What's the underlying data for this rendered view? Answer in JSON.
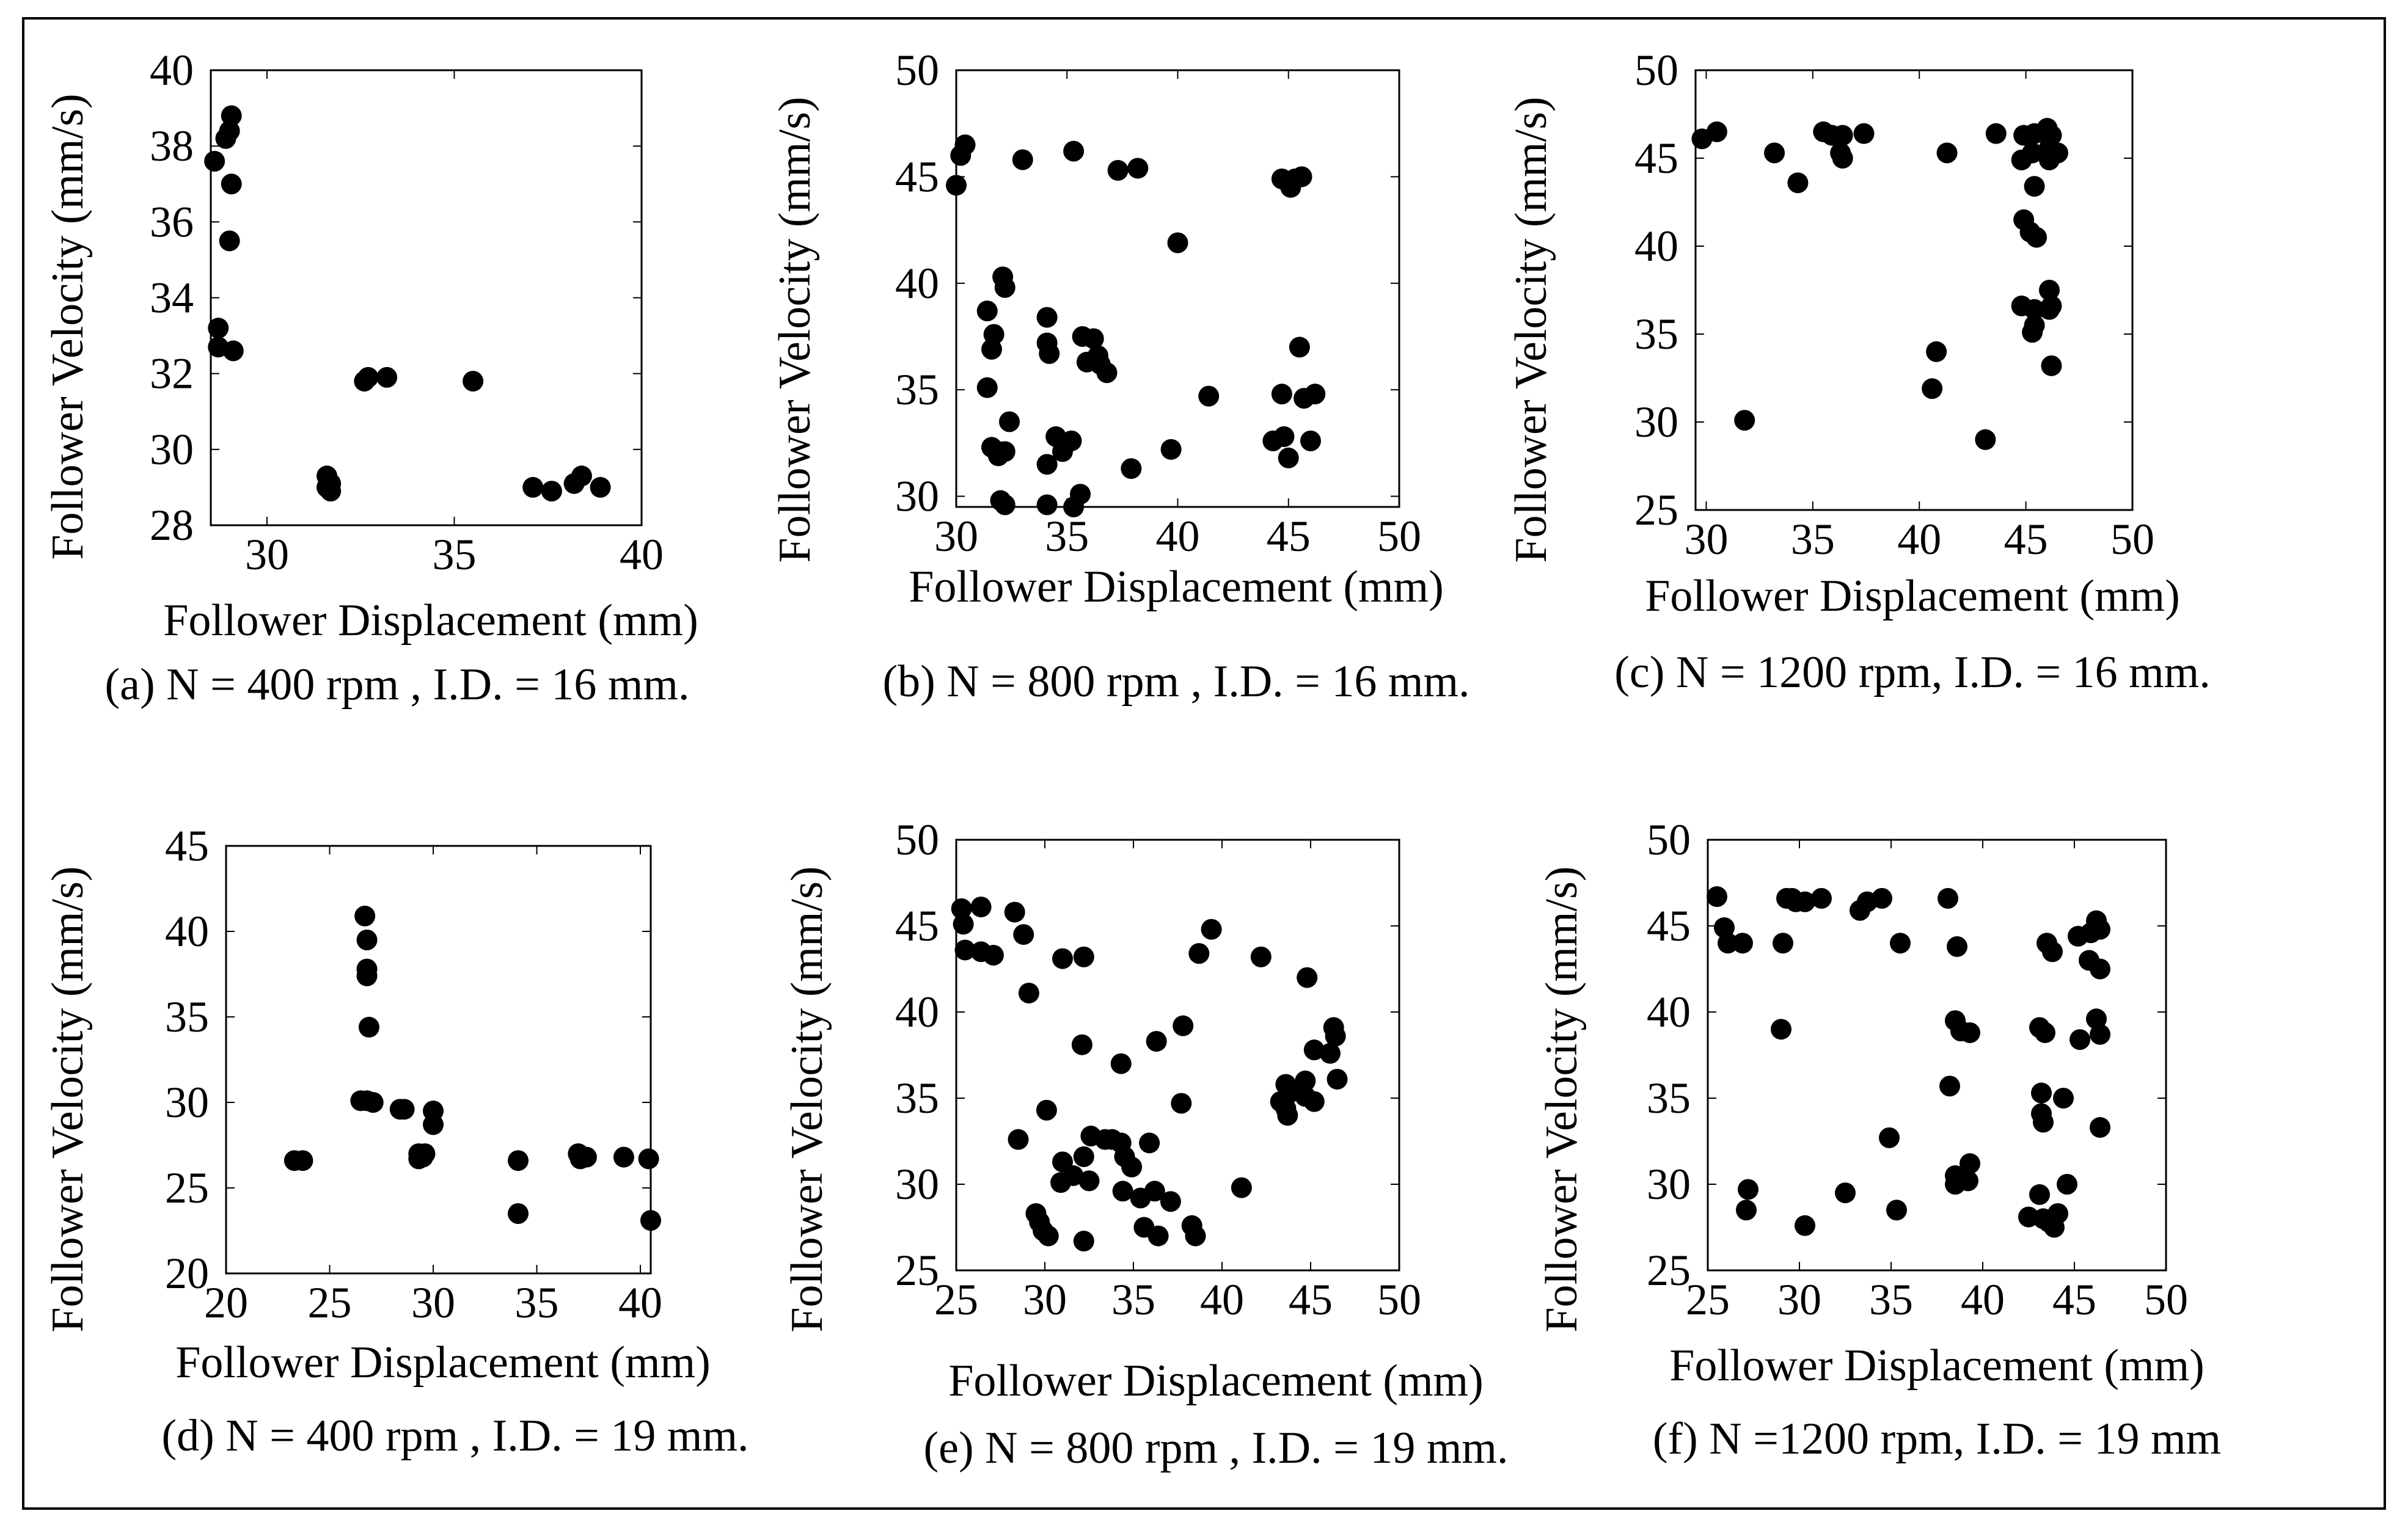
{
  "chart_data": [
    {
      "type": "scatter",
      "caption": "(a) N = 400 rpm  , I.D. = 16 mm.",
      "xlabel": "Follower Displacement (mm)",
      "ylabel": "Follower Velocity (mm/s)",
      "xlim": [
        28.5,
        40
      ],
      "ylim": [
        28,
        40
      ],
      "xticks": [
        30,
        35,
        40
      ],
      "yticks": [
        28,
        30,
        32,
        34,
        36,
        38,
        40
      ],
      "grid": false,
      "points": [
        [
          28.6,
          37.6
        ],
        [
          28.9,
          38.2
        ],
        [
          29,
          38.4
        ],
        [
          29.05,
          38.8
        ],
        [
          29.05,
          37
        ],
        [
          29,
          35.5
        ],
        [
          28.7,
          33.2
        ],
        [
          28.7,
          32.7
        ],
        [
          29.1,
          32.6
        ],
        [
          32.6,
          31.8
        ],
        [
          32.7,
          31.9
        ],
        [
          33.2,
          31.9
        ],
        [
          35.5,
          31.8
        ],
        [
          31.6,
          29.3
        ],
        [
          31.7,
          29.1
        ],
        [
          31.6,
          29
        ],
        [
          31.7,
          28.9
        ],
        [
          37.1,
          29
        ],
        [
          37.6,
          28.9
        ],
        [
          38.2,
          29.1
        ],
        [
          38.4,
          29.3
        ],
        [
          38.9,
          29
        ]
      ]
    },
    {
      "type": "scatter",
      "caption": "(b) N = 800 rpm , I.D. = 16 mm.",
      "xlabel": "Follower Displacement (mm)",
      "ylabel": "Follower Velocity (mm/s)",
      "xlim": [
        30,
        50
      ],
      "ylim": [
        29.5,
        50
      ],
      "xticks": [
        30,
        35,
        40,
        45,
        50
      ],
      "yticks": [
        30,
        35,
        40,
        45,
        50
      ],
      "grid": false,
      "points": [
        [
          30,
          44.6
        ],
        [
          30.2,
          46
        ],
        [
          30.4,
          46.5
        ],
        [
          33,
          45.8
        ],
        [
          35.3,
          46.2
        ],
        [
          37.3,
          45.3
        ],
        [
          38.2,
          45.4
        ],
        [
          40,
          41.9
        ],
        [
          44.7,
          44.9
        ],
        [
          45.1,
          44.5
        ],
        [
          45.3,
          44.9
        ],
        [
          45.6,
          45
        ],
        [
          31.4,
          38.7
        ],
        [
          32.1,
          40.3
        ],
        [
          32.2,
          39.8
        ],
        [
          31.7,
          37.6
        ],
        [
          31.6,
          36.9
        ],
        [
          31.4,
          35.1
        ],
        [
          32.4,
          33.5
        ],
        [
          31.6,
          32.3
        ],
        [
          31.9,
          32.1
        ],
        [
          32.2,
          32.1
        ],
        [
          31.9,
          31.9
        ],
        [
          32,
          29.8
        ],
        [
          32.2,
          29.6
        ],
        [
          34.1,
          38.4
        ],
        [
          34.1,
          37.2
        ],
        [
          34.2,
          36.7
        ],
        [
          34.5,
          32.8
        ],
        [
          34.1,
          31.5
        ],
        [
          34.8,
          32.1
        ],
        [
          35.2,
          32.6
        ],
        [
          34.1,
          29.6
        ],
        [
          35.3,
          29.5
        ],
        [
          35.6,
          30.1
        ],
        [
          35.7,
          37.5
        ],
        [
          36.2,
          37.4
        ],
        [
          36.4,
          36.6
        ],
        [
          35.9,
          36.3
        ],
        [
          36.5,
          36.2
        ],
        [
          36.8,
          35.8
        ],
        [
          37.9,
          31.3
        ],
        [
          39.7,
          32.2
        ],
        [
          41.4,
          34.7
        ],
        [
          44.3,
          32.6
        ],
        [
          44.7,
          34.8
        ],
        [
          44.8,
          32.8
        ],
        [
          45,
          31.8
        ],
        [
          45.5,
          37
        ],
        [
          45.7,
          34.6
        ],
        [
          46,
          32.6
        ],
        [
          46.2,
          34.8
        ]
      ]
    },
    {
      "type": "scatter",
      "caption": "(c) N = 1200 rpm, I.D. = 16 mm.",
      "xlabel": "Follower Displacement (mm)",
      "ylabel": "Follower Velocity (mm/s)",
      "xlim": [
        29.5,
        50
      ],
      "ylim": [
        25,
        50
      ],
      "xticks": [
        30,
        35,
        40,
        45,
        50
      ],
      "yticks": [
        25,
        30,
        35,
        40,
        45,
        50
      ],
      "grid": false,
      "points": [
        [
          29.8,
          46.1
        ],
        [
          30.5,
          46.5
        ],
        [
          33.2,
          45.3
        ],
        [
          34.3,
          43.6
        ],
        [
          35.5,
          46.5
        ],
        [
          35.9,
          46.3
        ],
        [
          36.4,
          46.3
        ],
        [
          36.3,
          45.3
        ],
        [
          36.4,
          45
        ],
        [
          37.4,
          46.4
        ],
        [
          41.3,
          45.3
        ],
        [
          43.6,
          46.4
        ],
        [
          44.9,
          46.3
        ],
        [
          45.4,
          46.4
        ],
        [
          45.3,
          45.3
        ],
        [
          44.8,
          44.9
        ],
        [
          46,
          46.7
        ],
        [
          46.2,
          46.3
        ],
        [
          46.1,
          45.6
        ],
        [
          46.5,
          45.3
        ],
        [
          46.1,
          44.9
        ],
        [
          45.4,
          43.4
        ],
        [
          44.9,
          41.5
        ],
        [
          45.2,
          40.8
        ],
        [
          45.5,
          40.5
        ],
        [
          44.8,
          36.6
        ],
        [
          45.4,
          36.4
        ],
        [
          45.4,
          35.5
        ],
        [
          45.3,
          35.1
        ],
        [
          46.1,
          37.5
        ],
        [
          46.2,
          36.6
        ],
        [
          46.1,
          36.4
        ],
        [
          46.2,
          33.2
        ],
        [
          40.8,
          34
        ],
        [
          40.6,
          31.9
        ],
        [
          31.8,
          30.1
        ],
        [
          43.1,
          29
        ]
      ]
    },
    {
      "type": "scatter",
      "caption": "(d) N = 400 rpm  , I.D. = 19 mm.",
      "xlabel": "Follower Displacement (mm)",
      "ylabel": "Follower Velocity (mm/s)",
      "xlim": [
        20,
        40.5
      ],
      "ylim": [
        20,
        45
      ],
      "xticks": [
        20,
        25,
        30,
        35,
        40
      ],
      "yticks": [
        20,
        25,
        30,
        35,
        40,
        45
      ],
      "grid": false,
      "points": [
        [
          26.7,
          40.9
        ],
        [
          26.8,
          39.5
        ],
        [
          26.8,
          37.8
        ],
        [
          26.8,
          37.4
        ],
        [
          26.9,
          34.4
        ],
        [
          26.5,
          30.1
        ],
        [
          26.8,
          30.1
        ],
        [
          27.1,
          30
        ],
        [
          28.4,
          29.6
        ],
        [
          28.6,
          29.6
        ],
        [
          29.3,
          27
        ],
        [
          29.5,
          26.8
        ],
        [
          29.3,
          26.7
        ],
        [
          29.6,
          27
        ],
        [
          30,
          29.5
        ],
        [
          30,
          28.7
        ],
        [
          23.3,
          26.6
        ],
        [
          23.7,
          26.6
        ],
        [
          34.1,
          26.6
        ],
        [
          34.1,
          23.5
        ],
        [
          37,
          27
        ],
        [
          37.1,
          26.7
        ],
        [
          37.4,
          26.8
        ],
        [
          39.2,
          26.8
        ],
        [
          40.4,
          26.7
        ],
        [
          40.5,
          23.1
        ]
      ]
    },
    {
      "type": "scatter",
      "caption": "(e) N = 800 rpm  , I.D. = 19 mm.",
      "xlabel": "Follower Displacement (mm)",
      "ylabel": "Follower Velocity (mm/s)",
      "xlim": [
        25,
        50
      ],
      "ylim": [
        25,
        50
      ],
      "xticks": [
        25,
        30,
        35,
        40,
        45,
        50
      ],
      "yticks": [
        25,
        30,
        35,
        40,
        45,
        50
      ],
      "grid": false,
      "points": [
        [
          25.3,
          46
        ],
        [
          25.4,
          45.1
        ],
        [
          25.5,
          43.6
        ],
        [
          26.4,
          46.1
        ],
        [
          26.4,
          43.5
        ],
        [
          27.1,
          43.3
        ],
        [
          28.3,
          45.8
        ],
        [
          28.8,
          44.5
        ],
        [
          29.1,
          41.1
        ],
        [
          31,
          43.1
        ],
        [
          32.2,
          43.2
        ],
        [
          32.1,
          38.1
        ],
        [
          36.3,
          38.3
        ],
        [
          34.3,
          37
        ],
        [
          37.8,
          39.2
        ],
        [
          38.7,
          43.4
        ],
        [
          39.4,
          44.8
        ],
        [
          42.2,
          43.2
        ],
        [
          44.8,
          42
        ],
        [
          43.6,
          35.8
        ],
        [
          43.8,
          35.3
        ],
        [
          43.3,
          34.8
        ],
        [
          43.6,
          34.4
        ],
        [
          43.7,
          34
        ],
        [
          44.7,
          36
        ],
        [
          44.7,
          35.1
        ],
        [
          45.2,
          34.8
        ],
        [
          45.2,
          37.8
        ],
        [
          46.1,
          37.6
        ],
        [
          46.3,
          39.1
        ],
        [
          46.4,
          38.6
        ],
        [
          46.5,
          36.1
        ],
        [
          28.5,
          32.6
        ],
        [
          29.5,
          28.3
        ],
        [
          29.7,
          27.8
        ],
        [
          29.9,
          27.3
        ],
        [
          30.2,
          27
        ],
        [
          30.1,
          34.3
        ],
        [
          30.9,
          30.1
        ],
        [
          31,
          31.3
        ],
        [
          31.6,
          30.5
        ],
        [
          32.2,
          31.6
        ],
        [
          32.2,
          26.7
        ],
        [
          32.5,
          30.2
        ],
        [
          32.6,
          32.8
        ],
        [
          33.4,
          32.6
        ],
        [
          33.8,
          32.6
        ],
        [
          34.3,
          32.4
        ],
        [
          34.5,
          31.6
        ],
        [
          34.9,
          31
        ],
        [
          34.4,
          29.6
        ],
        [
          35.4,
          29.2
        ],
        [
          35.6,
          27.5
        ],
        [
          35.9,
          32.4
        ],
        [
          36.2,
          29.6
        ],
        [
          36.4,
          27
        ],
        [
          37.1,
          29
        ],
        [
          37.7,
          34.7
        ],
        [
          38.3,
          27.6
        ],
        [
          38.5,
          27
        ],
        [
          41.1,
          29.8
        ]
      ]
    },
    {
      "type": "scatter",
      "caption": "(f) N =1200 rpm, I.D. = 19 mm",
      "xlabel": "Follower Displacement (mm)",
      "ylabel": "Follower Velocity (mm/s)",
      "xlim": [
        25,
        50
      ],
      "ylim": [
        25,
        50
      ],
      "xticks": [
        25,
        30,
        35,
        40,
        45,
        50
      ],
      "yticks": [
        25,
        30,
        35,
        40,
        45,
        50
      ],
      "grid": false,
      "points": [
        [
          25.5,
          46.7
        ],
        [
          25.9,
          44.9
        ],
        [
          26.1,
          44
        ],
        [
          26.9,
          44
        ],
        [
          29.3,
          46.6
        ],
        [
          29.8,
          46.4
        ],
        [
          30.3,
          46.4
        ],
        [
          29.6,
          46.6
        ],
        [
          31.2,
          46.6
        ],
        [
          33.3,
          45.9
        ],
        [
          33.7,
          46.4
        ],
        [
          34.5,
          46.6
        ],
        [
          29.1,
          44
        ],
        [
          35.5,
          44
        ],
        [
          38.1,
          46.6
        ],
        [
          38.6,
          43.8
        ],
        [
          38.5,
          39.5
        ],
        [
          38.8,
          38.9
        ],
        [
          39.3,
          38.8
        ],
        [
          38.2,
          35.7
        ],
        [
          38.5,
          30.5
        ],
        [
          38.5,
          30
        ],
        [
          39.3,
          31.2
        ],
        [
          39.2,
          30.2
        ],
        [
          29,
          39
        ],
        [
          27.2,
          29.7
        ],
        [
          27.1,
          28.5
        ],
        [
          30.3,
          27.6
        ],
        [
          32.5,
          29.5
        ],
        [
          34.9,
          32.7
        ],
        [
          35.3,
          28.5
        ],
        [
          42.5,
          28.1
        ],
        [
          43.1,
          29.4
        ],
        [
          43.3,
          28
        ],
        [
          43.6,
          27.8
        ],
        [
          43.9,
          27.5
        ],
        [
          44.1,
          28.3
        ],
        [
          44.6,
          30
        ],
        [
          43.2,
          35.3
        ],
        [
          43.2,
          34.1
        ],
        [
          43.3,
          33.6
        ],
        [
          43.1,
          39.1
        ],
        [
          43.4,
          38.8
        ],
        [
          44.4,
          35
        ],
        [
          43.5,
          44
        ],
        [
          43.8,
          43.5
        ],
        [
          45.2,
          44.4
        ],
        [
          45.9,
          44.6
        ],
        [
          46.2,
          45.3
        ],
        [
          46.4,
          44.8
        ],
        [
          45.8,
          43
        ],
        [
          46.4,
          42.5
        ],
        [
          46.2,
          39.6
        ],
        [
          46.4,
          38.7
        ],
        [
          45.3,
          38.4
        ],
        [
          46.4,
          33.3
        ]
      ]
    }
  ]
}
